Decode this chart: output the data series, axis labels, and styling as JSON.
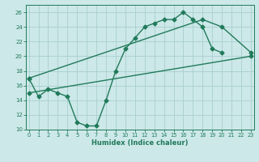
{
  "xlabel": "Humidex (Indice chaleur)",
  "line1_x": [
    0,
    1,
    2,
    3,
    4,
    5,
    6,
    7,
    8,
    9,
    10,
    11,
    12,
    13,
    14,
    15,
    16,
    17,
    18,
    19,
    20
  ],
  "line1_y": [
    17,
    14.5,
    15.5,
    15,
    14.5,
    11,
    10.5,
    10.5,
    14,
    18,
    21,
    22.5,
    24,
    24.5,
    25,
    25,
    26,
    25,
    24,
    21,
    20.5
  ],
  "line2_x": [
    0,
    18,
    20,
    23
  ],
  "line2_y": [
    17,
    25,
    24,
    20.5
  ],
  "line3_x": [
    0,
    23
  ],
  "line3_y": [
    15,
    20
  ],
  "color": "#217a5a",
  "bg_color": "#cce8e8",
  "grid_color": "#aacece",
  "ylim": [
    10,
    27
  ],
  "xlim": [
    -0.3,
    23.3
  ],
  "yticks": [
    10,
    12,
    14,
    16,
    18,
    20,
    22,
    24,
    26
  ],
  "xticks": [
    0,
    1,
    2,
    3,
    4,
    5,
    6,
    7,
    8,
    9,
    10,
    11,
    12,
    13,
    14,
    15,
    16,
    17,
    18,
    19,
    20,
    21,
    22,
    23
  ],
  "marker": "D",
  "markersize": 2.5,
  "linewidth": 1.0
}
